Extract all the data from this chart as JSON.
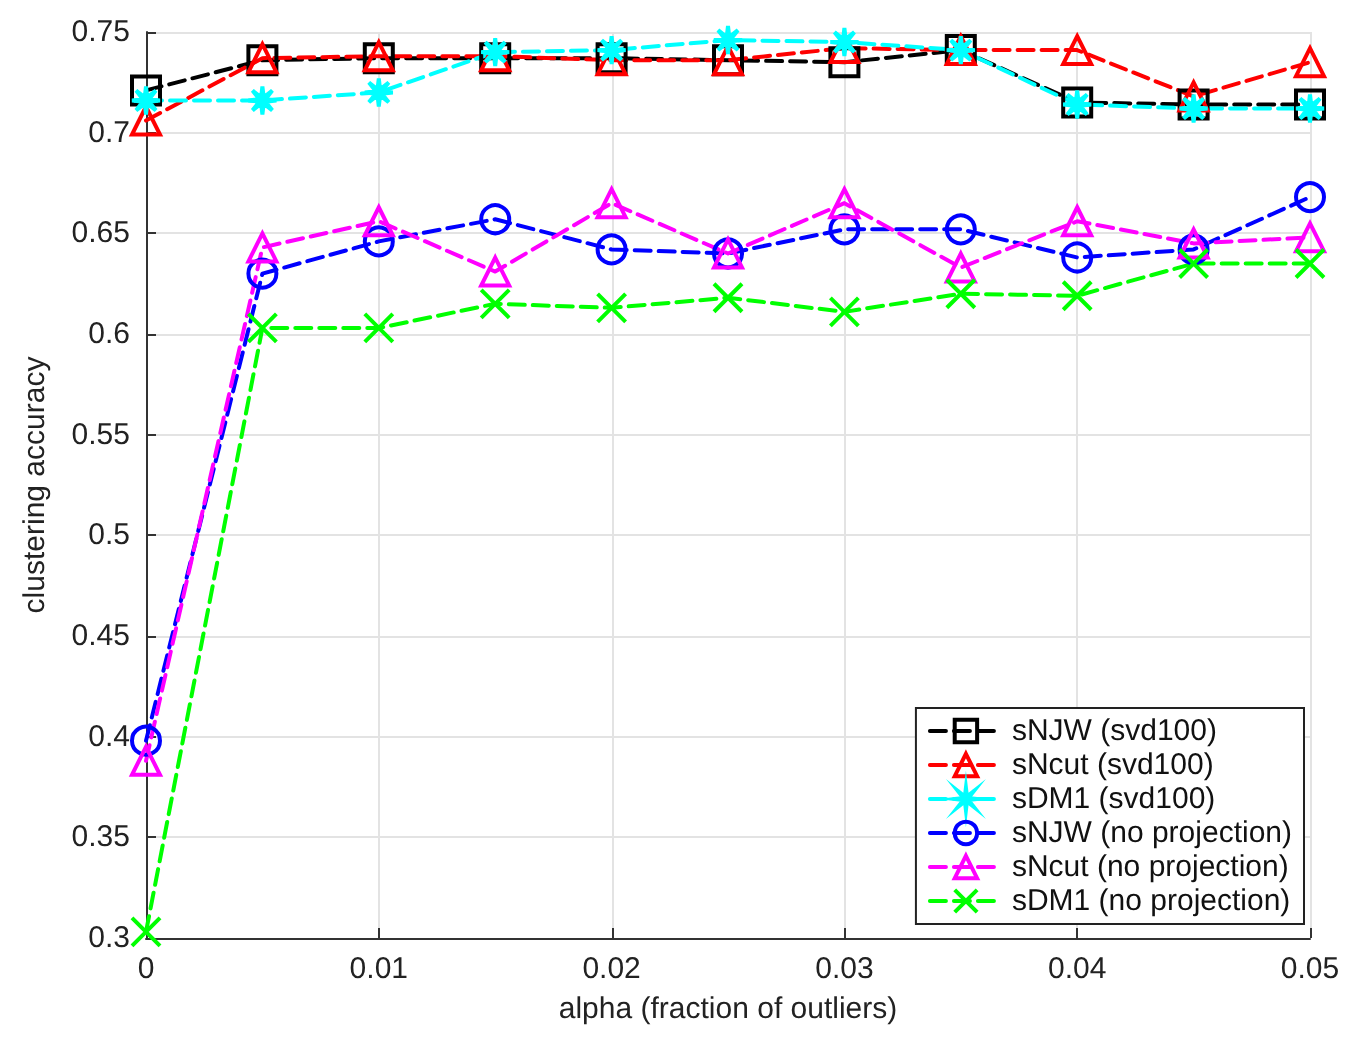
{
  "chart_data": {
    "type": "line",
    "xlabel": "alpha (fraction of outliers)",
    "ylabel": "clustering accuracy",
    "x": [
      0,
      0.005,
      0.01,
      0.015,
      0.02,
      0.025,
      0.03,
      0.035,
      0.04,
      0.045,
      0.05
    ],
    "xlim": [
      0,
      0.05
    ],
    "xticks": [
      0,
      0.01,
      0.02,
      0.03,
      0.04,
      0.05
    ],
    "ylim": [
      0.3,
      0.75
    ],
    "yticks": [
      0.3,
      0.35,
      0.4,
      0.45,
      0.5,
      0.55,
      0.6,
      0.65,
      0.7,
      0.75
    ],
    "grid": true,
    "legend": "bottom right",
    "line_style": "dashed",
    "series": [
      {
        "name": "sNJW (svd100)",
        "color": "#000000",
        "marker": "square",
        "values": [
          0.721,
          0.736,
          0.737,
          0.737,
          0.737,
          0.736,
          0.735,
          0.741,
          0.715,
          0.714,
          0.714
        ]
      },
      {
        "name": "sNcut (svd100)",
        "color": "#ff0000",
        "marker": "triangle",
        "values": [
          0.706,
          0.737,
          0.738,
          0.738,
          0.736,
          0.736,
          0.742,
          0.741,
          0.741,
          0.718,
          0.735
        ]
      },
      {
        "name": "sDM1 (svd100)",
        "color": "#00ffff",
        "marker": "star",
        "values": [
          0.716,
          0.716,
          0.72,
          0.74,
          0.741,
          0.746,
          0.745,
          0.741,
          0.714,
          0.712,
          0.712
        ]
      },
      {
        "name": "sNJW (no projection)",
        "color": "#0000ff",
        "marker": "circle",
        "values": [
          0.398,
          0.63,
          0.646,
          0.657,
          0.642,
          0.64,
          0.652,
          0.652,
          0.638,
          0.642,
          0.668
        ]
      },
      {
        "name": "sNcut (no projection)",
        "color": "#ff00ff",
        "marker": "triangle",
        "values": [
          0.388,
          0.643,
          0.656,
          0.631,
          0.665,
          0.64,
          0.665,
          0.633,
          0.656,
          0.645,
          0.648
        ]
      },
      {
        "name": "sDM1 (no projection)",
        "color": "#00ff00",
        "marker": "cross",
        "values": [
          0.303,
          0.603,
          0.603,
          0.615,
          0.613,
          0.618,
          0.611,
          0.62,
          0.619,
          0.635,
          0.635
        ]
      }
    ]
  }
}
